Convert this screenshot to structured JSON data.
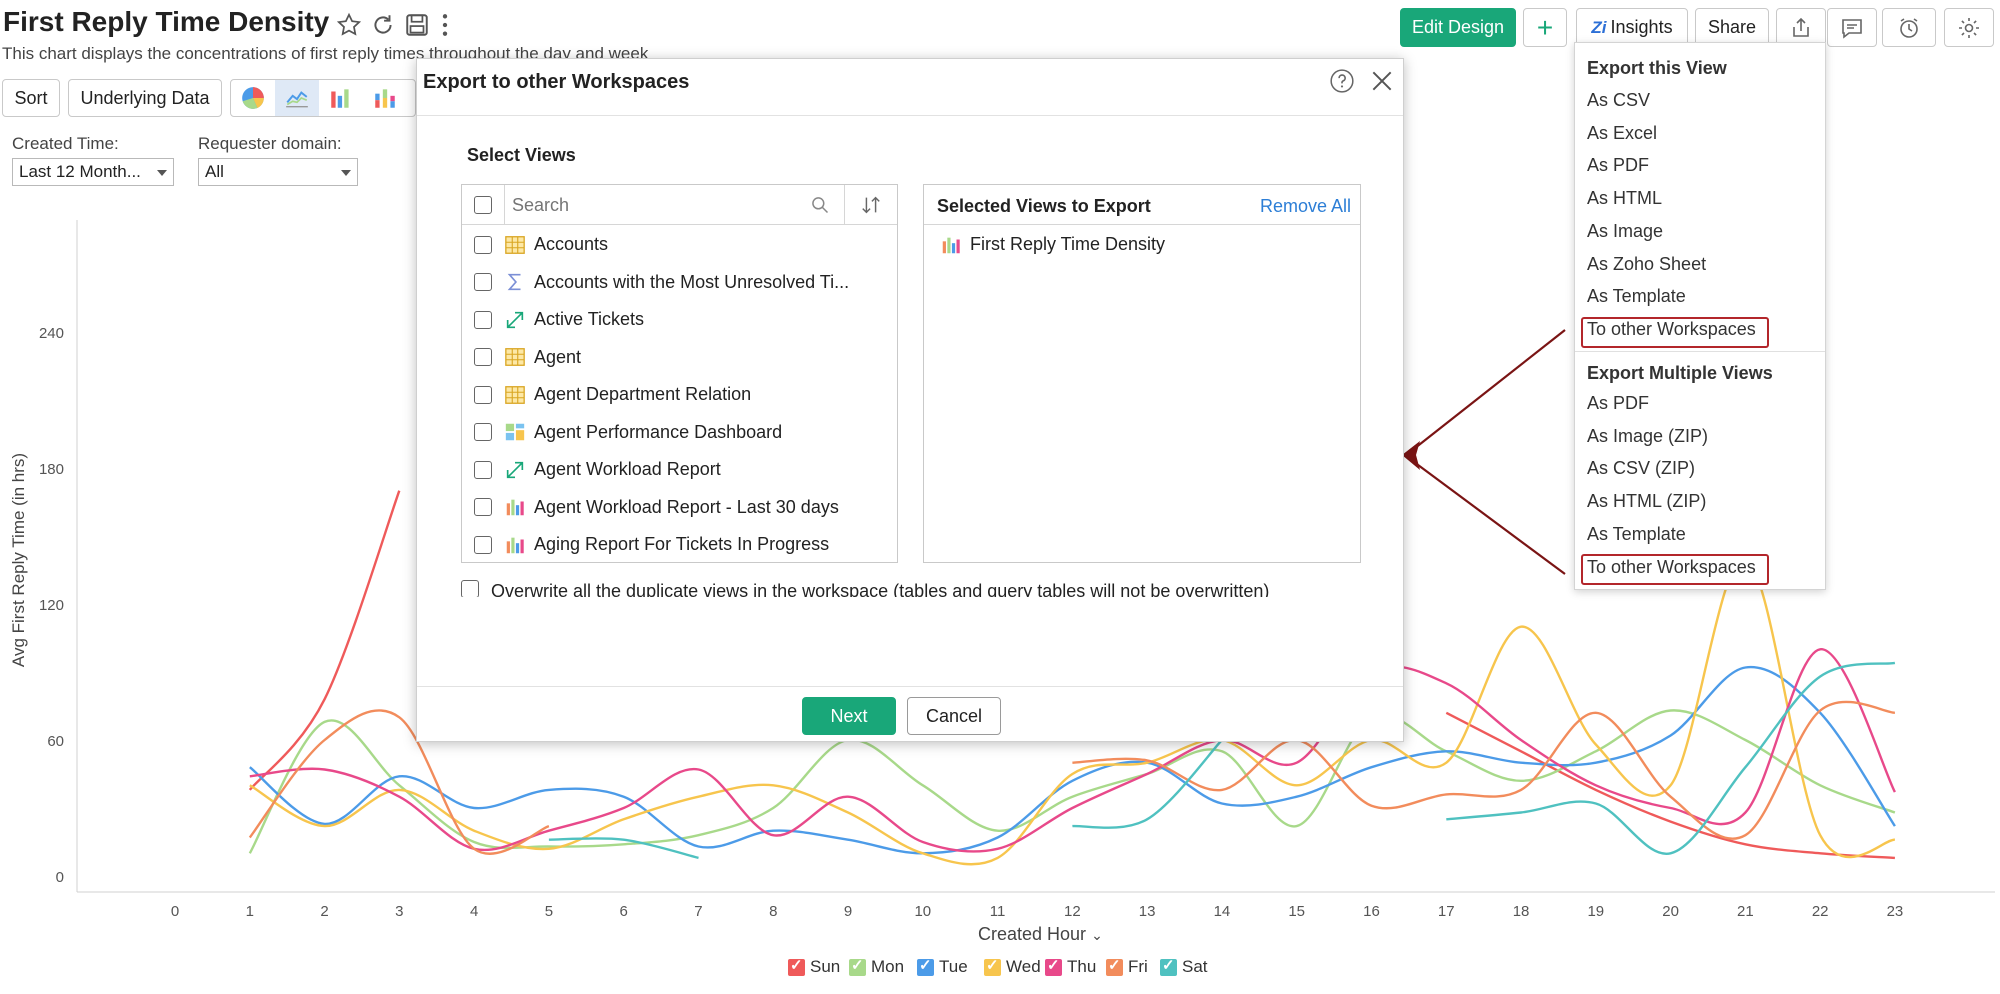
{
  "header": {
    "title": "First Reply Time Density",
    "subtitle": "This chart displays the concentrations of first reply times throughout the day and week",
    "edit_design": "Edit Design",
    "add": "+",
    "insights": "Insights",
    "share": "Share",
    "icons": [
      "star-icon",
      "refresh-icon",
      "save-icon",
      "more-icon",
      "export-icon",
      "comment-icon",
      "schedule-icon",
      "settings-icon"
    ]
  },
  "toolbar": {
    "sort": "Sort",
    "underlying_data": "Underlying Data",
    "chart_type_icons": [
      "pie-chart-icon",
      "line-chart-icon",
      "bar-chart-icon",
      "stacked-bar-icon"
    ]
  },
  "filters": [
    {
      "label": "Created Time:",
      "value": "Last 12 Month..."
    },
    {
      "label": "Requester domain:",
      "value": "All"
    }
  ],
  "chart_data": {
    "type": "line",
    "xlabel": "Created Hour",
    "ylabel": "Avg First Reply Time (in hrs)",
    "x": [
      0,
      1,
      2,
      3,
      4,
      5,
      6,
      7,
      8,
      9,
      10,
      11,
      12,
      13,
      14,
      15,
      16,
      17,
      18,
      19,
      20,
      21,
      22,
      23
    ],
    "ylim": [
      0,
      270
    ],
    "yticks": [
      0,
      60,
      120,
      180,
      240
    ],
    "grid": false,
    "legend": "bottom",
    "series": [
      {
        "name": "Sun",
        "color": "#ef5a5a",
        "values": [
          null,
          38,
          78,
          170,
          null,
          null,
          null,
          null,
          null,
          null,
          null,
          null,
          null,
          null,
          null,
          null,
          null,
          72,
          55,
          38,
          24,
          14,
          10,
          8
        ]
      },
      {
        "name": "Mon",
        "color": "#a8d98a",
        "values": [
          null,
          10,
          68,
          40,
          15,
          13,
          14,
          18,
          30,
          60,
          40,
          20,
          35,
          45,
          55,
          22,
          70,
          55,
          42,
          55,
          73,
          60,
          40,
          28
        ]
      },
      {
        "name": "Tue",
        "color": "#4c9be8",
        "values": [
          null,
          48,
          23,
          44,
          30,
          38,
          35,
          13,
          20,
          16,
          10,
          17,
          42,
          50,
          32,
          35,
          48,
          55,
          50,
          50,
          62,
          92,
          72,
          22
        ]
      },
      {
        "name": "Wed",
        "color": "#f7c54d",
        "values": [
          null,
          40,
          22,
          38,
          20,
          12,
          25,
          35,
          40,
          28,
          10,
          8,
          45,
          50,
          60,
          40,
          60,
          50,
          110,
          58,
          40,
          140,
          18,
          16
        ]
      },
      {
        "name": "Thu",
        "color": "#e8498a",
        "values": [
          null,
          44,
          47,
          35,
          12,
          20,
          30,
          47,
          18,
          35,
          15,
          12,
          30,
          45,
          60,
          50,
          90,
          85,
          60,
          40,
          30,
          28,
          100,
          37
        ]
      },
      {
        "name": "Fri",
        "color": "#f28c5c",
        "values": [
          null,
          17,
          60,
          70,
          12,
          22,
          null,
          null,
          null,
          35,
          null,
          null,
          50,
          51,
          38,
          60,
          31,
          36,
          38,
          72,
          35,
          18,
          73,
          72
        ]
      },
      {
        "name": "Sat",
        "color": "#4fc1c0",
        "values": [
          null,
          42,
          null,
          null,
          null,
          16,
          16,
          8,
          null,
          null,
          null,
          null,
          22,
          25,
          60,
          null,
          null,
          25,
          28,
          32,
          10,
          48,
          88,
          94
        ]
      }
    ]
  },
  "dialog": {
    "title": "Export to other Workspaces",
    "select_views": "Select Views",
    "search_placeholder": "Search",
    "selected_title": "Selected Views to Export",
    "remove_all": "Remove All",
    "views": [
      {
        "label": "Accounts",
        "icon": "table-icon"
      },
      {
        "label": "Accounts with the Most Unresolved Ti...",
        "icon": "formula-icon"
      },
      {
        "label": "Active Tickets",
        "icon": "query-table-icon"
      },
      {
        "label": "Agent",
        "icon": "table-icon"
      },
      {
        "label": "Agent Department Relation",
        "icon": "table-icon"
      },
      {
        "label": "Agent Performance Dashboard",
        "icon": "dashboard-icon"
      },
      {
        "label": "Agent Workload Report",
        "icon": "query-table-icon"
      },
      {
        "label": "Agent Workload Report - Last 30 days",
        "icon": "chart-icon"
      },
      {
        "label": "Aging Report For Tickets In Progress",
        "icon": "chart-icon"
      }
    ],
    "selected_views": [
      {
        "label": "First Reply Time Density",
        "icon": "chart-icon"
      }
    ],
    "overwrite": "Overwrite all the duplicate views in the workspace (tables and query tables will not be overwritten)",
    "next": "Next",
    "cancel": "Cancel"
  },
  "export_menu": {
    "section1": "Export this View",
    "items1": [
      "As CSV",
      "As Excel",
      "As PDF",
      "As HTML",
      "As Image",
      "As Zoho Sheet",
      "As Template",
      "To other Workspaces"
    ],
    "section2": "Export Multiple Views",
    "items2": [
      "As PDF",
      "As Image (ZIP)",
      "As CSV (ZIP)",
      "As HTML (ZIP)",
      "As Template",
      "To other Workspaces"
    ]
  },
  "annotation_color": "#7a1414"
}
